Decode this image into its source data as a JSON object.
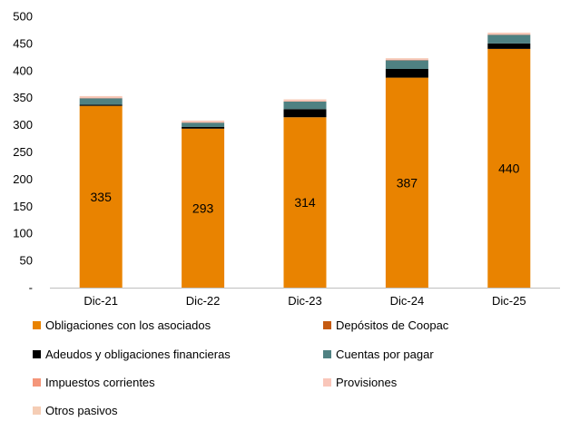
{
  "chart_data": {
    "type": "bar",
    "stacked": true,
    "categories": [
      "Dic-21",
      "Dic-22",
      "Dic-23",
      "Dic-24",
      "Dic-25"
    ],
    "ylim": [
      0,
      500
    ],
    "yticks": [
      0,
      50,
      100,
      150,
      200,
      250,
      300,
      350,
      400,
      450,
      500
    ],
    "ytick_labels": [
      "-",
      "50",
      "100",
      "150",
      "200",
      "250",
      "300",
      "350",
      "400",
      "450",
      "500"
    ],
    "grid": false,
    "legend_position": "bottom",
    "series": [
      {
        "name": "Obligaciones con los asociados",
        "color": "#E98300",
        "values": [
          335,
          293,
          314,
          387,
          440
        ],
        "label_values": [
          "335",
          "293",
          "314",
          "387",
          "440"
        ]
      },
      {
        "name": "Depósitos de Coopac",
        "color": "#C55A11",
        "values": [
          0,
          0,
          0,
          0,
          0
        ]
      },
      {
        "name": "Adeudos y obligaciones financieras",
        "color": "#000000",
        "values": [
          2,
          3,
          15,
          16,
          10
        ]
      },
      {
        "name": "Cuentas por pagar",
        "color": "#4F8182",
        "values": [
          12,
          8,
          14,
          16,
          16
        ]
      },
      {
        "name": "Impuestos corrientes",
        "color": "#F4967A",
        "values": [
          1,
          1,
          1,
          1,
          1
        ]
      },
      {
        "name": "Provisiones",
        "color": "#F9C6BA",
        "values": [
          2,
          2,
          2,
          2,
          2
        ]
      },
      {
        "name": "Otros pasivos",
        "color": "#F5CDB5",
        "values": [
          1,
          1,
          1,
          1,
          1
        ]
      }
    ]
  }
}
